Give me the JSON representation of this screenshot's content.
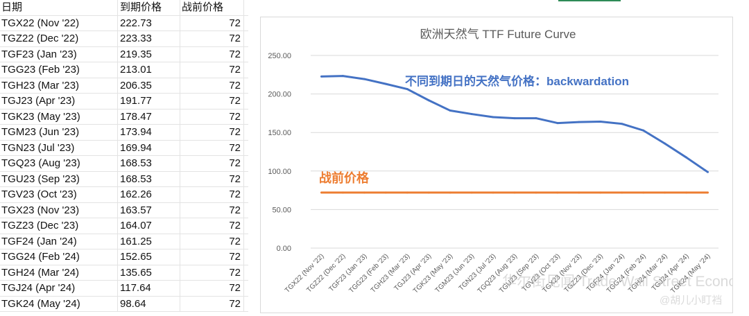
{
  "spreadsheet": {
    "headers": [
      "日期",
      "到期价格",
      "战前价格"
    ],
    "rows": [
      [
        "TGX22 (Nov '22)",
        "222.73",
        "72"
      ],
      [
        "TGZ22 (Dec '22)",
        "223.33",
        "72"
      ],
      [
        "TGF23 (Jan '23)",
        "219.35",
        "72"
      ],
      [
        "TGG23 (Feb '23)",
        "213.01",
        "72"
      ],
      [
        "TGH23 (Mar '23)",
        "206.35",
        "72"
      ],
      [
        "TGJ23 (Apr '23)",
        "191.77",
        "72"
      ],
      [
        "TGK23 (May '23)",
        "178.47",
        "72"
      ],
      [
        "TGM23 (Jun '23)",
        "173.94",
        "72"
      ],
      [
        "TGN23 (Jul '23)",
        "169.94",
        "72"
      ],
      [
        "TGQ23 (Aug '23)",
        "168.53",
        "72"
      ],
      [
        "TGU23 (Sep '23)",
        "168.53",
        "72"
      ],
      [
        "TGV23 (Oct '23)",
        "162.26",
        "72"
      ],
      [
        "TGX23 (Nov '23)",
        "163.57",
        "72"
      ],
      [
        "TGZ23 (Dec '23)",
        "164.07",
        "72"
      ],
      [
        "TGF24 (Jan '24)",
        "161.25",
        "72"
      ],
      [
        "TGG24 (Feb '24)",
        "152.65",
        "72"
      ],
      [
        "TGH24 (Mar '24)",
        "135.65",
        "72"
      ],
      [
        "TGJ24 (Apr '24)",
        "117.64",
        "72"
      ],
      [
        "TGK24 (May '24)",
        "98.64",
        "72"
      ]
    ]
  },
  "chart_data": {
    "type": "line",
    "title": "欧洲天然气 TTF Future Curve",
    "categories": [
      "TGX22 (Nov '22)",
      "TGZ22 (Dec '22)",
      "TGF23 (Jan '23)",
      "TGG23 (Feb '23)",
      "TGH23 (Mar '23)",
      "TGJ23 (Apr '23)",
      "TGK23 (May '23)",
      "TGM23 (Jun '23)",
      "TGN23 (Jul '23)",
      "TGQ23 (Aug '23)",
      "TGU23 (Sep '23)",
      "TGV23 (Oct '23)",
      "TGX23 (Nov '23)",
      "TGZ23 (Dec '23)",
      "TGF24 (Jan '24)",
      "TGG24 (Feb '24)",
      "TGH24 (Mar '24)",
      "TGJ24 (Apr '24)",
      "TGK24 (May '24)"
    ],
    "series": [
      {
        "values": [
          222.73,
          223.33,
          219.35,
          213.01,
          206.35,
          191.77,
          178.47,
          173.94,
          169.94,
          168.53,
          168.53,
          162.26,
          163.57,
          164.07,
          161.25,
          152.65,
          135.65,
          117.64,
          98.64
        ],
        "color": "#4472C4"
      },
      {
        "values": [
          72,
          72,
          72,
          72,
          72,
          72,
          72,
          72,
          72,
          72,
          72,
          72,
          72,
          72,
          72,
          72,
          72,
          72,
          72
        ],
        "color": "#ED7D31"
      }
    ],
    "ylim": [
      0,
      250
    ],
    "yticks": [
      "0.00",
      "50.00",
      "100.00",
      "150.00",
      "200.00",
      "250.00"
    ],
    "grid": true,
    "annotations": {
      "upper": "不同到期日的天然气价格：backwardation",
      "lower": "战前价格"
    }
  },
  "watermark": {
    "line1": "华尔街见闻 Trade Wall Street Economy 老虎社区",
    "line2": "@胡儿小盯裆"
  }
}
